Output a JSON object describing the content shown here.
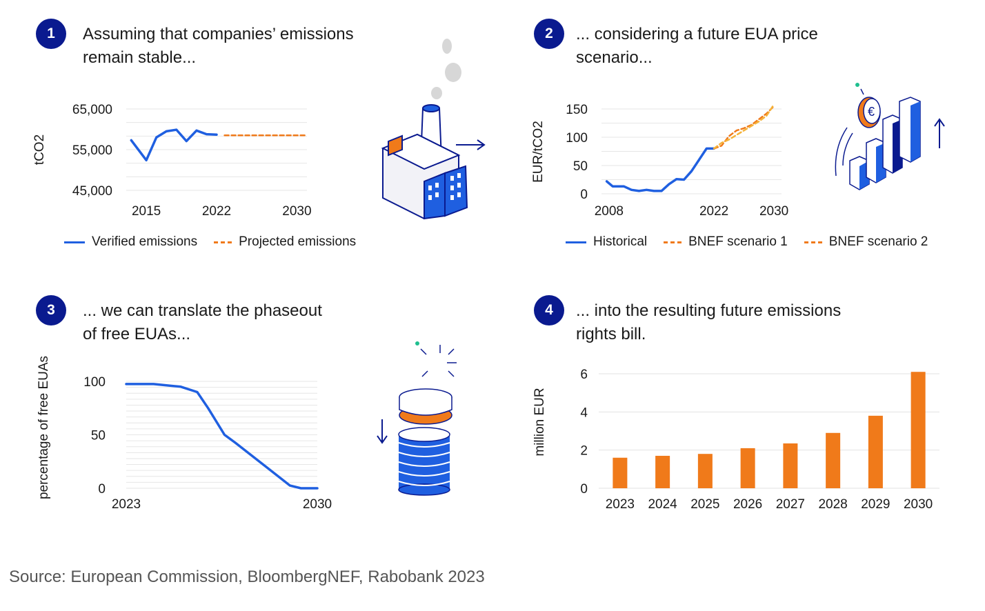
{
  "panels": [
    {
      "number": "1",
      "heading_line1": "Assuming that companies’ emissions",
      "heading_line2": "remain stable..."
    },
    {
      "number": "2",
      "heading_line1": "... considering a future EUA price",
      "heading_line2": "scenario..."
    },
    {
      "number": "3",
      "heading_line1": "... we can translate the phaseout",
      "heading_line2": "of free EUAs..."
    },
    {
      "number": "4",
      "heading_line1": "... into the resulting future emissions",
      "heading_line2": "rights bill."
    }
  ],
  "colors": {
    "blue": "#1f5fe0",
    "orange": "#f07a1a",
    "navy": "#0a1a8f",
    "grid": "#dddddd"
  },
  "icons": [
    "factory-icon",
    "rising-bars-euro-icon",
    "coin-stack-icon"
  ],
  "source": "Source: European Commission, BloombergNEF, Rabobank 2023",
  "chart_data": [
    {
      "type": "line",
      "ylabel": "tCO2",
      "xlabel": "",
      "ylim": [
        45000,
        65000
      ],
      "yticks": [
        {
          "v": 45000,
          "label": "45,000"
        },
        {
          "v": 55000,
          "label": "55,000"
        },
        {
          "v": 65000,
          "label": "65,000"
        }
      ],
      "xlim": [
        2013,
        2031
      ],
      "xticks": [
        2015,
        2022,
        2030
      ],
      "grid": true,
      "legend_position": "bottom",
      "series": [
        {
          "name": "Verified emissions",
          "style": "solid",
          "color": "#1f5fe0",
          "x": [
            2013.5,
            2015,
            2016,
            2017,
            2018,
            2019,
            2020,
            2021,
            2022
          ],
          "y": [
            57300,
            52400,
            58000,
            59500,
            59900,
            57100,
            59700,
            58800,
            58700
          ]
        },
        {
          "name": "Projected emissions",
          "style": "dashed",
          "color": "#f07a1a",
          "x": [
            2022.8,
            2030.8
          ],
          "y": [
            58500,
            58500
          ]
        }
      ]
    },
    {
      "type": "line",
      "ylabel": "EUR/tCO2",
      "xlabel": "",
      "ylim": [
        0,
        150
      ],
      "yticks": [
        {
          "v": 0,
          "label": "0"
        },
        {
          "v": 50,
          "label": "50"
        },
        {
          "v": 100,
          "label": "100"
        },
        {
          "v": 150,
          "label": "150"
        }
      ],
      "xlim": [
        2007,
        2031
      ],
      "xticks": [
        2008,
        2022,
        2030
      ],
      "grid": true,
      "legend_position": "bottom",
      "series": [
        {
          "name": "Historical",
          "style": "solid",
          "color": "#1f5fe0",
          "x": [
            2007.7,
            2008.5,
            2010,
            2011,
            2012,
            2013,
            2014,
            2015,
            2016,
            2017,
            2018,
            2019,
            2020,
            2021,
            2022
          ],
          "y": [
            22,
            13,
            13,
            7,
            5,
            7,
            5,
            5,
            17,
            26,
            25,
            40,
            60,
            80,
            80
          ]
        },
        {
          "name": "BNEF scenario 1",
          "style": "dashed",
          "color": "#f07a1a",
          "x": [
            2022,
            2023,
            2024,
            2025,
            2026,
            2027,
            2028,
            2029,
            2030
          ],
          "y": [
            80,
            85,
            102,
            112,
            116,
            122,
            132,
            142,
            155
          ]
        },
        {
          "name": "BNEF scenario 2",
          "style": "dashed",
          "color": "#f5b33a",
          "x": [
            2022,
            2023,
            2024,
            2025,
            2026,
            2027,
            2028,
            2029,
            2030
          ],
          "y": [
            80,
            90,
            96,
            104,
            112,
            120,
            128,
            138,
            158
          ]
        }
      ]
    },
    {
      "type": "line",
      "ylabel": "percentage of free EUAs",
      "xlabel": "",
      "ylim": [
        0,
        100
      ],
      "yticks": [
        {
          "v": 0,
          "label": "0"
        },
        {
          "v": 50,
          "label": "50"
        },
        {
          "v": 100,
          "label": "100"
        }
      ],
      "xlim": [
        2023,
        2030
      ],
      "xticks": [
        2023,
        2030
      ],
      "grid": true,
      "series": [
        {
          "name": "",
          "style": "solid",
          "color": "#1f5fe0",
          "x": [
            2023,
            2024,
            2025,
            2025.6,
            2026,
            2026.6,
            2027,
            2028,
            2029,
            2029.4,
            2030
          ],
          "y": [
            97.5,
            97.5,
            95,
            90,
            75,
            50,
            42.5,
            22.5,
            2.5,
            0,
            0
          ]
        }
      ]
    },
    {
      "type": "bar",
      "ylabel": "million EUR",
      "xlabel": "",
      "ylim": [
        0,
        6
      ],
      "yticks": [
        {
          "v": 0,
          "label": "0"
        },
        {
          "v": 2,
          "label": "2"
        },
        {
          "v": 4,
          "label": "4"
        },
        {
          "v": 6,
          "label": "6"
        }
      ],
      "grid": true,
      "categories": [
        "2023",
        "2024",
        "2025",
        "2026",
        "2027",
        "2028",
        "2029",
        "2030"
      ],
      "series": [
        {
          "name": "",
          "color": "#f07a1a",
          "values": [
            1.6,
            1.7,
            1.8,
            2.1,
            2.35,
            2.9,
            3.8,
            6.1
          ]
        }
      ]
    }
  ]
}
